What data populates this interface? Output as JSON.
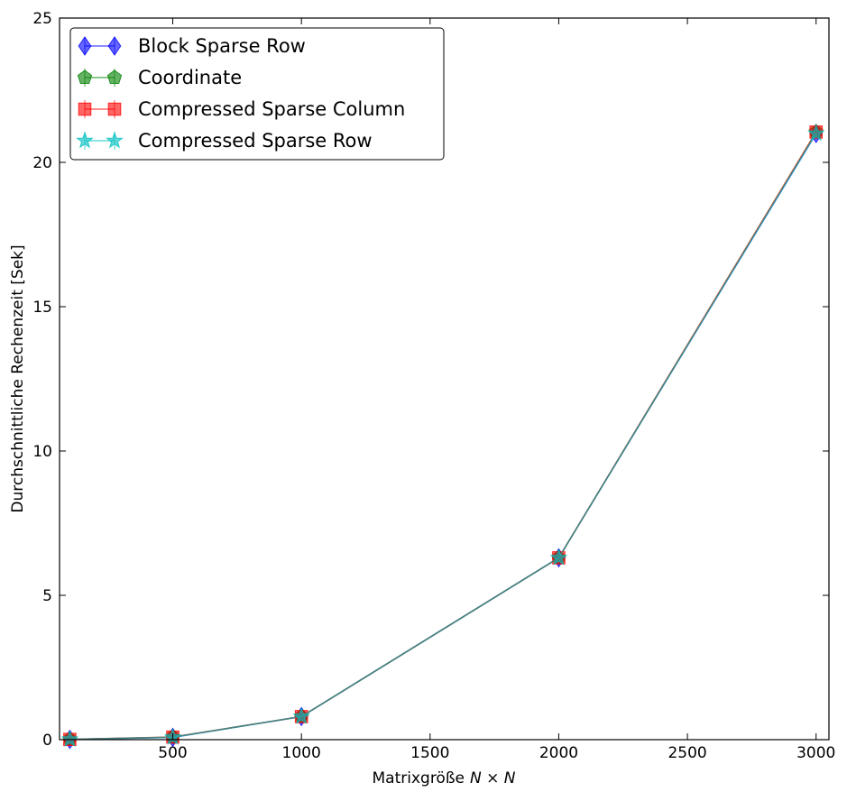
{
  "chart_data": {
    "type": "line",
    "title": "",
    "xlabel": "Matrixgröße",
    "xlabel_math": "N × N",
    "ylabel": "Durchschnittliche Rechenzeit [Sek]",
    "xlim": [
      60,
      3050
    ],
    "ylim": [
      0,
      25
    ],
    "xticks": [
      500,
      1000,
      1500,
      2000,
      2500,
      3000
    ],
    "xtick_labels": [
      "500",
      "1000",
      "1500",
      "2000",
      "2500",
      "3000"
    ],
    "yticks": [
      0,
      5,
      10,
      15,
      20,
      25
    ],
    "ytick_labels": [
      "0",
      "5",
      "10",
      "15",
      "20",
      "25"
    ],
    "grid": false,
    "legend_position": "top-left",
    "x": [
      100,
      500,
      1000,
      2000,
      3000
    ],
    "series": [
      {
        "name": "Block Sparse Row",
        "marker": "diamond",
        "color": "#0000ff",
        "values": [
          0.01,
          0.08,
          0.8,
          6.3,
          21.0
        ]
      },
      {
        "name": "Coordinate",
        "marker": "pentagon",
        "color": "#008000",
        "values": [
          0.01,
          0.09,
          0.8,
          6.3,
          21.05
        ]
      },
      {
        "name": "Compressed Sparse Column",
        "marker": "square",
        "color": "#ff0000",
        "values": [
          0.01,
          0.09,
          0.8,
          6.3,
          21.05
        ]
      },
      {
        "name": "Compressed Sparse Row",
        "marker": "star",
        "color": "#00bfbf",
        "values": [
          0.01,
          0.08,
          0.8,
          6.3,
          21.0
        ]
      }
    ]
  }
}
